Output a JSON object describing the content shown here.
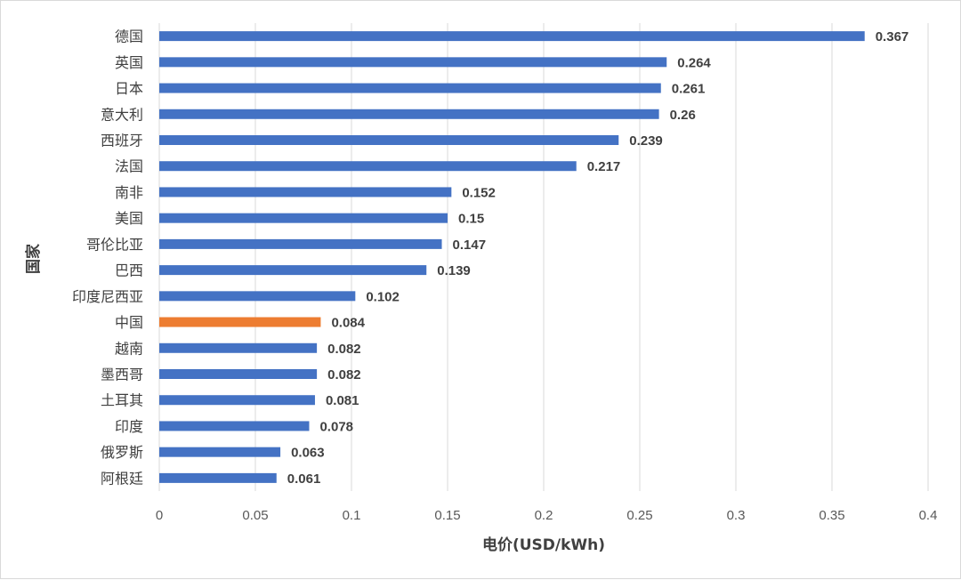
{
  "chart_data": {
    "type": "bar",
    "orientation": "horizontal",
    "categories": [
      "德国",
      "英国",
      "日本",
      "意大利",
      "西班牙",
      "法国",
      "南非",
      "美国",
      "哥伦比亚",
      "巴西",
      "印度尼西亚",
      "中国",
      "越南",
      "墨西哥",
      "土耳其",
      "印度",
      "俄罗斯",
      "阿根廷"
    ],
    "values": [
      0.367,
      0.264,
      0.261,
      0.26,
      0.239,
      0.217,
      0.152,
      0.15,
      0.147,
      0.139,
      0.102,
      0.084,
      0.082,
      0.082,
      0.081,
      0.078,
      0.063,
      0.061
    ],
    "value_labels": [
      "0.367",
      "0.264",
      "0.261",
      "0.26",
      "0.239",
      "0.217",
      "0.152",
      "0.15",
      "0.147",
      "0.139",
      "0.102",
      "0.084",
      "0.082",
      "0.082",
      "0.081",
      "0.078",
      "0.063",
      "0.061"
    ],
    "highlight_category": "中国",
    "xlabel": "电价(USD/kWh)",
    "ylabel": "国家",
    "xlim": [
      0,
      0.4
    ],
    "xticks": [
      "0",
      "0.05",
      "0.1",
      "0.15",
      "0.2",
      "0.25",
      "0.3",
      "0.35",
      "0.4"
    ],
    "grid": "vertical",
    "legend": "none",
    "colors": {
      "bar": "#4472C4",
      "highlight": "#ED7D31",
      "grid": "#d9d9d9",
      "text": "#404040"
    }
  }
}
